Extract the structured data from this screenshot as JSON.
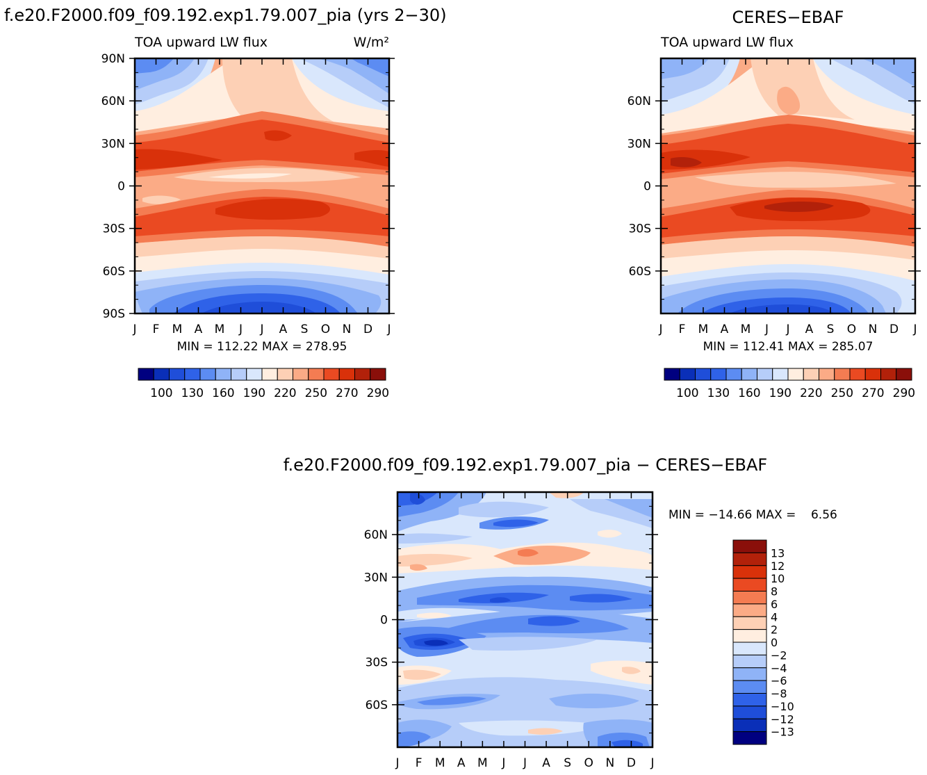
{
  "colors": {
    "abs_scale": [
      "#000080",
      "#0a2fb8",
      "#1f4ed9",
      "#2f62e8",
      "#5c8cf2",
      "#8fb3f7",
      "#b6cdf9",
      "#d9e7fc",
      "#ffeee0",
      "#fdd0b5",
      "#fbab86",
      "#f47c52",
      "#ea4a22",
      "#d9310a",
      "#b2210a",
      "#8a0f0a"
    ],
    "diff_scale": [
      "#000080",
      "#0a2fb8",
      "#1f4ed9",
      "#2f62e8",
      "#5c8cf2",
      "#8fb3f7",
      "#b6cdf9",
      "#d9e7fc",
      "#ffeee0",
      "#fdd0b5",
      "#fbab86",
      "#f47c52",
      "#ea4a22",
      "#d9310a",
      "#b2210a",
      "#8a0f0a"
    ]
  },
  "chart_data": [
    {
      "type": "heatmap",
      "title": "f.e20.F2000.f09_f09.192.exp1.79.007_pia (yrs 2−30)",
      "left_label": "TOA upward LW flux",
      "units": "W/m²",
      "x_ticks": [
        "J",
        "F",
        "M",
        "A",
        "M",
        "J",
        "J",
        "A",
        "S",
        "O",
        "N",
        "D",
        "J"
      ],
      "y_ticks": [
        "90N",
        "60N",
        "30N",
        "0",
        "30S",
        "60S",
        "90S"
      ],
      "ylim": [
        -90,
        90
      ],
      "stats": "MIN = 112.22  MAX = 278.95",
      "colorbar_labels": [
        "100",
        "130",
        "160",
        "190",
        "220",
        "250",
        "270",
        "290"
      ]
    },
    {
      "type": "heatmap",
      "title": "CERES−EBAF",
      "left_label": "TOA upward LW flux",
      "x_ticks": [
        "J",
        "F",
        "M",
        "A",
        "M",
        "J",
        "J",
        "A",
        "S",
        "O",
        "N",
        "D",
        "J"
      ],
      "y_ticks": [
        "60N",
        "30N",
        "0",
        "30S",
        "60S"
      ],
      "ylim": [
        -90,
        90
      ],
      "stats": "MIN = 112.41  MAX = 285.07",
      "colorbar_labels": [
        "100",
        "130",
        "160",
        "190",
        "220",
        "250",
        "270",
        "290"
      ]
    },
    {
      "type": "heatmap",
      "title": "f.e20.F2000.f09_f09.192.exp1.79.007_pia − CERES−EBAF",
      "x_ticks": [
        "J",
        "F",
        "M",
        "A",
        "M",
        "J",
        "J",
        "A",
        "S",
        "O",
        "N",
        "D",
        "J"
      ],
      "y_ticks": [
        "60N",
        "30N",
        "0",
        "30S",
        "60S"
      ],
      "ylim": [
        -90,
        90
      ],
      "stats": "MIN = −14.66 MAX =    6.56",
      "colorbar_labels": [
        "13",
        "12",
        "10",
        "8",
        "6",
        "4",
        "2",
        "0",
        "−2",
        "−4",
        "−6",
        "−8",
        "−10",
        "−12",
        "−13"
      ]
    }
  ]
}
